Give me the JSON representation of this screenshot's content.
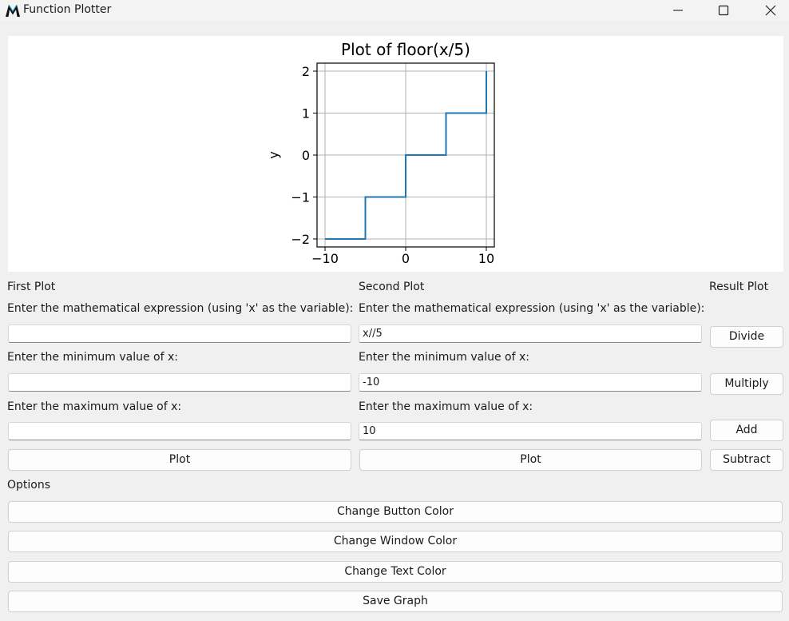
{
  "window": {
    "title": "Function Plotter"
  },
  "chart_data": {
    "type": "line",
    "title": "Plot of floor(x/5)",
    "xlabel": "",
    "ylabel": "y",
    "xlim": [
      -10,
      10
    ],
    "ylim": [
      -2,
      2
    ],
    "xticks": [
      -10,
      0,
      10
    ],
    "xtick_labels": [
      "−10",
      "0",
      "10"
    ],
    "yticks": [
      -2,
      -1,
      0,
      1,
      2
    ],
    "ytick_labels": [
      "−2",
      "−1",
      "0",
      "1",
      "2"
    ],
    "grid": true,
    "series": [
      {
        "color": "#1f77b4",
        "x": [
          -10,
          -5,
          -5,
          0,
          0,
          5,
          5,
          10,
          10
        ],
        "y": [
          -2,
          -2,
          -1,
          -1,
          0,
          0,
          1,
          1,
          2
        ]
      }
    ]
  },
  "first_plot": {
    "heading": "First Plot",
    "expr_label": "Enter the mathematical expression (using 'x' as the variable):",
    "expr_value": "",
    "min_label": "Enter the minimum value of x:",
    "min_value": "",
    "max_label": "Enter the maximum value of x:",
    "max_value": "",
    "plot_button": "Plot"
  },
  "second_plot": {
    "heading": "Second Plot",
    "expr_label": "Enter the mathematical expression (using 'x' as the variable):",
    "expr_value": "x//5",
    "min_label": "Enter the minimum value of x:",
    "min_value": "-10",
    "max_label": "Enter the maximum value of x:",
    "max_value": "10",
    "plot_button": "Plot"
  },
  "result_plot": {
    "heading": "Result Plot",
    "divide_button": "Divide",
    "multiply_button": "Multiply",
    "add_button": "Add",
    "subtract_button": "Subtract"
  },
  "options": {
    "heading": "Options",
    "change_button_color": "Change Button Color",
    "change_window_color": "Change Window Color",
    "change_text_color": "Change Text Color",
    "save_graph": "Save Graph"
  }
}
